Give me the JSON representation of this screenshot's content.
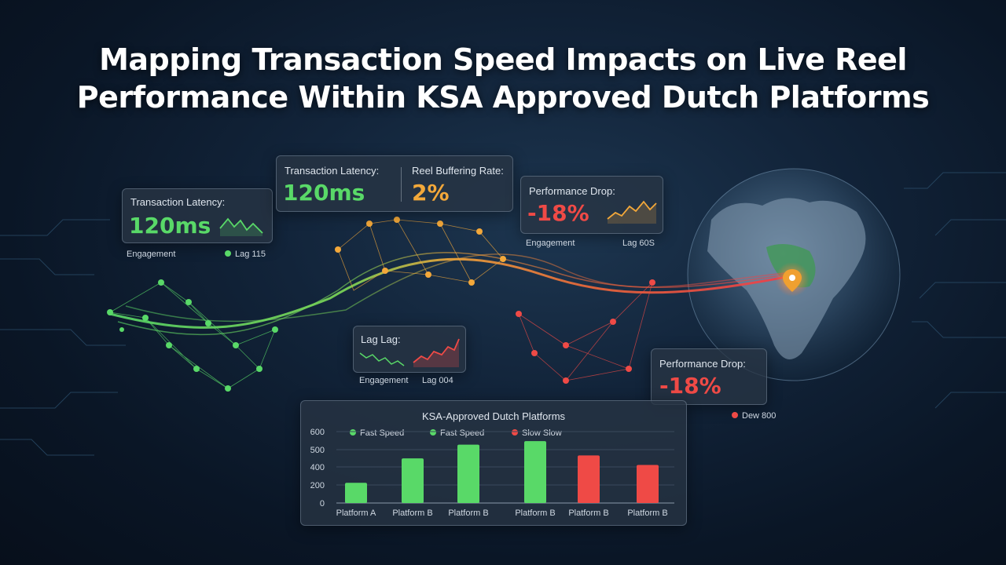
{
  "title_lines": [
    "Mapping Transaction Speed Impacts on Live Reel",
    "Performance Within KSA Approved Dutch Platforms"
  ],
  "cards": {
    "latency_left": {
      "label": "Transaction Latency:",
      "value": "120ms",
      "value_color": "#59d968"
    },
    "latency_top": {
      "label": "Transaction Latency:",
      "value": "120ms",
      "value_color": "#59d968"
    },
    "buffering": {
      "label": "Reel Buffering Rate:",
      "value": "2%",
      "value_color": "#f3a83a"
    },
    "perf_drop_top": {
      "label": "Performance Drop:",
      "value": "-18%",
      "value_color": "#ef4a46"
    },
    "lag": {
      "label": "Lag Lag:"
    },
    "perf_drop_right": {
      "label": "Performance Drop:",
      "value": "-18%",
      "value_color": "#ef4a46"
    }
  },
  "footnotes": {
    "left_engagement": "Engagement",
    "left_lag": "Lag 115",
    "top_engagement": "Engagement",
    "top_lag": "Lag 60S",
    "mid_engagement": "Engagement",
    "mid_lag": "Lag 004",
    "right_dew": "Dew 800"
  },
  "colors": {
    "fast": "#59d968",
    "slow": "#ef4a46",
    "mid": "#f3a83a",
    "pin": "#f0a030"
  },
  "chart_data": {
    "type": "bar",
    "title": "KSA-Approved Dutch Platforms",
    "categories": [
      "Platform A",
      "Platform B",
      "Platform B",
      "Platform B",
      "Platform B",
      "Platform B"
    ],
    "values": [
      170,
      375,
      490,
      520,
      400,
      320
    ],
    "bar_colors": [
      "#59d968",
      "#59d968",
      "#59d968",
      "#59d968",
      "#ef4a46",
      "#ef4a46"
    ],
    "legend": [
      {
        "name": "Fast Speed",
        "color": "#59d968"
      },
      {
        "name": "Fast Speed",
        "color": "#59d968"
      },
      {
        "name": "Slow Slow",
        "color": "#ef4a46"
      }
    ],
    "yticks": [
      "600",
      "500",
      "400",
      "200",
      "0"
    ],
    "ylim": [
      0,
      600
    ],
    "grid": true
  }
}
